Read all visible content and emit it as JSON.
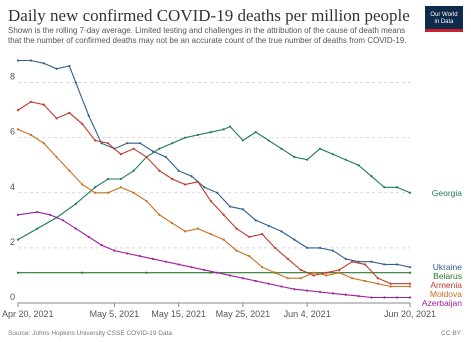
{
  "header": {
    "title": "Daily new confirmed COVID-19 deaths per million people",
    "subtitle": "Shown is the rolling 7-day average. Limited testing and challenges in the attribution of the cause of death means that the number of confirmed deaths may not be an accurate count of the true number of deaths from COVID-19.",
    "logo_line1": "Our World",
    "logo_line2": "in Data"
  },
  "footer": {
    "source": "Source: Johns Hopkins University CSSE COVID-19 Data",
    "license": "CC BY"
  },
  "chart_data": {
    "type": "line",
    "title": "Daily new confirmed COVID-19 deaths per million people",
    "x_ticks": [
      "Apr 20, 2021",
      "May 5, 2021",
      "May 15, 2021",
      "May 25, 2021",
      "Jun 4, 2021",
      "Jun 20, 2021"
    ],
    "x_tick_days": [
      0,
      15,
      25,
      35,
      45,
      61
    ],
    "y_ticks": [
      0,
      2,
      4,
      6,
      8
    ],
    "ylim": [
      0,
      9
    ],
    "xlim_days": [
      0,
      61
    ],
    "grid": true,
    "colors": {
      "Georgia": "#1d7a5f",
      "Ukraine": "#2f5f8f",
      "Belarus": "#2b7a2b",
      "Armenia": "#c0392b",
      "Moldova": "#c8701e",
      "Azerbaijan": "#a0209a"
    },
    "series": [
      {
        "name": "Georgia",
        "points": [
          [
            0,
            2.3
          ],
          [
            3,
            2.7
          ],
          [
            6,
            3.1
          ],
          [
            9,
            3.6
          ],
          [
            12,
            4.2
          ],
          [
            14,
            4.5
          ],
          [
            16,
            4.5
          ],
          [
            18,
            4.8
          ],
          [
            20,
            5.3
          ],
          [
            22,
            5.6
          ],
          [
            24,
            5.8
          ],
          [
            26,
            6.0
          ],
          [
            28,
            6.1
          ],
          [
            30,
            6.2
          ],
          [
            32,
            6.3
          ],
          [
            33,
            6.4
          ],
          [
            35,
            5.9
          ],
          [
            37,
            6.2
          ],
          [
            39,
            5.9
          ],
          [
            41,
            5.6
          ],
          [
            43,
            5.3
          ],
          [
            45,
            5.2
          ],
          [
            47,
            5.6
          ],
          [
            49,
            5.4
          ],
          [
            51,
            5.2
          ],
          [
            53,
            5.0
          ],
          [
            55,
            4.6
          ],
          [
            57,
            4.2
          ],
          [
            59,
            4.2
          ],
          [
            61,
            4.0
          ]
        ]
      },
      {
        "name": "Ukraine",
        "points": [
          [
            0,
            8.8
          ],
          [
            2,
            8.8
          ],
          [
            4,
            8.7
          ],
          [
            6,
            8.5
          ],
          [
            8,
            8.6
          ],
          [
            9,
            8.0
          ],
          [
            11,
            6.8
          ],
          [
            13,
            5.8
          ],
          [
            15,
            5.6
          ],
          [
            17,
            5.8
          ],
          [
            19,
            5.8
          ],
          [
            21,
            5.5
          ],
          [
            23,
            5.3
          ],
          [
            25,
            4.8
          ],
          [
            27,
            4.6
          ],
          [
            29,
            4.2
          ],
          [
            31,
            4.0
          ],
          [
            33,
            3.5
          ],
          [
            35,
            3.4
          ],
          [
            37,
            3.0
          ],
          [
            39,
            2.8
          ],
          [
            41,
            2.6
          ],
          [
            43,
            2.3
          ],
          [
            45,
            2.0
          ],
          [
            47,
            2.0
          ],
          [
            49,
            1.9
          ],
          [
            51,
            1.6
          ],
          [
            53,
            1.5
          ],
          [
            55,
            1.5
          ],
          [
            57,
            1.4
          ],
          [
            59,
            1.4
          ],
          [
            61,
            1.3
          ]
        ]
      },
      {
        "name": "Belarus",
        "points": [
          [
            0,
            1.1
          ],
          [
            10,
            1.1
          ],
          [
            20,
            1.1
          ],
          [
            30,
            1.1
          ],
          [
            40,
            1.1
          ],
          [
            50,
            1.1
          ],
          [
            61,
            1.1
          ]
        ]
      },
      {
        "name": "Armenia",
        "points": [
          [
            0,
            7.0
          ],
          [
            2,
            7.3
          ],
          [
            4,
            7.2
          ],
          [
            6,
            6.7
          ],
          [
            8,
            6.9
          ],
          [
            10,
            6.5
          ],
          [
            12,
            5.9
          ],
          [
            14,
            5.8
          ],
          [
            16,
            5.4
          ],
          [
            18,
            5.6
          ],
          [
            20,
            5.3
          ],
          [
            22,
            4.8
          ],
          [
            24,
            4.5
          ],
          [
            26,
            4.3
          ],
          [
            28,
            4.4
          ],
          [
            30,
            3.7
          ],
          [
            32,
            3.2
          ],
          [
            34,
            2.7
          ],
          [
            36,
            2.4
          ],
          [
            38,
            2.5
          ],
          [
            40,
            2.0
          ],
          [
            42,
            1.6
          ],
          [
            44,
            1.2
          ],
          [
            46,
            1.0
          ],
          [
            48,
            1.1
          ],
          [
            50,
            1.2
          ],
          [
            52,
            1.5
          ],
          [
            54,
            1.4
          ],
          [
            56,
            0.9
          ],
          [
            58,
            0.7
          ],
          [
            61,
            0.7
          ]
        ]
      },
      {
        "name": "Moldova",
        "points": [
          [
            0,
            6.3
          ],
          [
            2,
            6.1
          ],
          [
            4,
            5.8
          ],
          [
            6,
            5.3
          ],
          [
            8,
            4.8
          ],
          [
            10,
            4.3
          ],
          [
            12,
            4.0
          ],
          [
            14,
            4.0
          ],
          [
            16,
            4.2
          ],
          [
            18,
            4.0
          ],
          [
            20,
            3.7
          ],
          [
            22,
            3.2
          ],
          [
            24,
            2.9
          ],
          [
            26,
            2.6
          ],
          [
            28,
            2.7
          ],
          [
            30,
            2.5
          ],
          [
            32,
            2.3
          ],
          [
            34,
            1.9
          ],
          [
            36,
            1.7
          ],
          [
            38,
            1.3
          ],
          [
            40,
            1.1
          ],
          [
            42,
            0.9
          ],
          [
            44,
            0.9
          ],
          [
            46,
            1.1
          ],
          [
            48,
            1.0
          ],
          [
            50,
            1.1
          ],
          [
            52,
            0.9
          ],
          [
            54,
            0.8
          ],
          [
            56,
            0.7
          ],
          [
            58,
            0.6
          ],
          [
            61,
            0.6
          ]
        ]
      },
      {
        "name": "Azerbaijan",
        "points": [
          [
            0,
            3.2
          ],
          [
            3,
            3.3
          ],
          [
            5,
            3.2
          ],
          [
            7,
            3.0
          ],
          [
            9,
            2.7
          ],
          [
            11,
            2.4
          ],
          [
            13,
            2.1
          ],
          [
            15,
            1.9
          ],
          [
            17,
            1.8
          ],
          [
            19,
            1.7
          ],
          [
            21,
            1.6
          ],
          [
            23,
            1.5
          ],
          [
            25,
            1.4
          ],
          [
            27,
            1.3
          ],
          [
            29,
            1.2
          ],
          [
            31,
            1.1
          ],
          [
            33,
            1.0
          ],
          [
            35,
            0.9
          ],
          [
            37,
            0.8
          ],
          [
            39,
            0.7
          ],
          [
            41,
            0.6
          ],
          [
            43,
            0.5
          ],
          [
            45,
            0.45
          ],
          [
            47,
            0.4
          ],
          [
            49,
            0.35
          ],
          [
            51,
            0.3
          ],
          [
            53,
            0.25
          ],
          [
            55,
            0.2
          ],
          [
            57,
            0.2
          ],
          [
            59,
            0.2
          ],
          [
            61,
            0.2
          ]
        ]
      }
    ]
  }
}
